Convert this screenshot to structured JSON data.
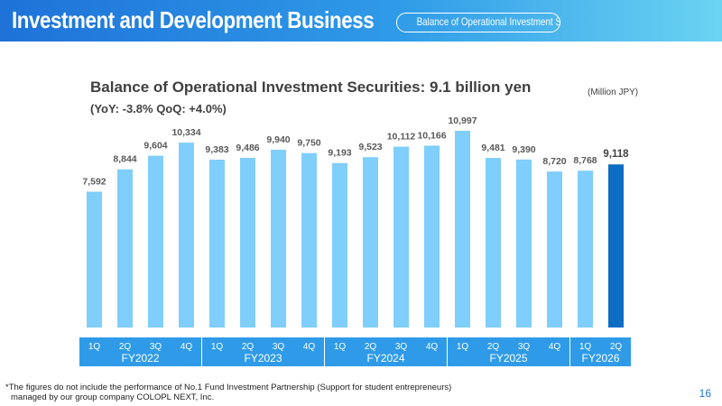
{
  "header": {
    "title": "Investment and Development Business",
    "badge": "Balance of Operational Investment Securities",
    "gradient_start": "#1e72d8",
    "gradient_end": "#6bd3f2"
  },
  "chart_title": "Balance of Operational Investment Securities: 9.1 billion yen",
  "chart_subtitle": "(YoY: -3.8% QoQ: +4.0%)",
  "unit": "(Million JPY)",
  "footnote": [
    "*The figures do not include the performance of No.1 Fund Investment Partnership (Support for student entrepreneurs)",
    "managed by our group company COLOPL NEXT, Inc."
  ],
  "page_number": "16",
  "colors": {
    "bar": "#7fcefb",
    "bar_highlight": "#0c6dc2",
    "period_bar": "#2f9be8"
  },
  "chart_data": {
    "type": "bar",
    "categories": [
      "1Q",
      "2Q",
      "3Q",
      "4Q",
      "1Q",
      "2Q",
      "3Q",
      "4Q",
      "1Q",
      "2Q",
      "3Q",
      "4Q",
      "1Q",
      "2Q",
      "3Q",
      "4Q",
      "1Q",
      "2Q"
    ],
    "groups": [
      {
        "label": "FY2022",
        "quarters": [
          "1Q",
          "2Q",
          "3Q",
          "4Q"
        ]
      },
      {
        "label": "FY2023",
        "quarters": [
          "1Q",
          "2Q",
          "3Q",
          "4Q"
        ]
      },
      {
        "label": "FY2024",
        "quarters": [
          "1Q",
          "2Q",
          "3Q",
          "4Q"
        ]
      },
      {
        "label": "FY2025",
        "quarters": [
          "1Q",
          "2Q",
          "3Q",
          "4Q"
        ]
      },
      {
        "label": "FY2026",
        "quarters": [
          "1Q",
          "2Q"
        ]
      }
    ],
    "values": [
      7592,
      8844,
      9604,
      10334,
      9383,
      9486,
      9940,
      9750,
      9193,
      9523,
      10112,
      10166,
      10997,
      9481,
      9390,
      8720,
      8768,
      9118
    ],
    "value_labels": [
      "7,592",
      "8,844",
      "9,604",
      "10,334",
      "9,383",
      "9,486",
      "9,940",
      "9,750",
      "9,193",
      "9,523",
      "10,112",
      "10,166",
      "10,997",
      "9,481",
      "9,390",
      "8,720",
      "8,768",
      "9,118"
    ],
    "highlight_index": 17,
    "ylim": [
      0,
      11500
    ],
    "grid": false,
    "legend": "none"
  }
}
